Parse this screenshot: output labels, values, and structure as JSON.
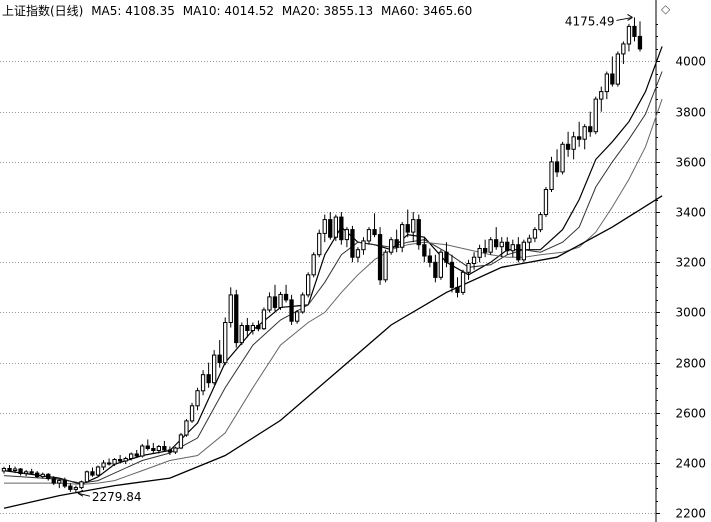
{
  "header": {
    "title": "上证指数(日线)",
    "ma5": "MA5: 4108.35",
    "ma10": "MA10: 4014.52",
    "ma20": "MA20: 3855.13",
    "ma60": "MA60: 3465.60"
  },
  "indicator": "◇",
  "chart_data": {
    "type": "candlestick",
    "title": "上证指数(日线)",
    "y_ticks": [
      2200,
      2400,
      2600,
      2800,
      3000,
      3200,
      3400,
      3600,
      3800,
      4000
    ],
    "y_tick_labels": [
      "2200",
      "2400",
      "2600",
      "2800",
      "3000",
      "3200",
      "3400",
      "3600",
      "3800",
      "4000"
    ],
    "ylim": [
      2165,
      4245
    ],
    "grid": true,
    "annotations": [
      {
        "label": "4175.49",
        "value": 4175.49,
        "type": "high"
      },
      {
        "label": "2279.84",
        "value": 2279.84,
        "type": "low"
      }
    ],
    "candles": [
      [
        2368,
        2385,
        2358,
        2378
      ],
      [
        2378,
        2392,
        2366,
        2370
      ],
      [
        2370,
        2386,
        2360,
        2376
      ],
      [
        2376,
        2380,
        2350,
        2358
      ],
      [
        2358,
        2372,
        2348,
        2365
      ],
      [
        2365,
        2377,
        2354,
        2360
      ],
      [
        2360,
        2368,
        2340,
        2346
      ],
      [
        2346,
        2362,
        2338,
        2355
      ],
      [
        2355,
        2360,
        2330,
        2338
      ],
      [
        2338,
        2348,
        2312,
        2320
      ],
      [
        2320,
        2336,
        2300,
        2330
      ],
      [
        2330,
        2342,
        2300,
        2308
      ],
      [
        2308,
        2320,
        2285,
        2295
      ],
      [
        2295,
        2310,
        2279.84,
        2302
      ],
      [
        2302,
        2330,
        2296,
        2325
      ],
      [
        2325,
        2370,
        2320,
        2365
      ],
      [
        2365,
        2382,
        2345,
        2352
      ],
      [
        2352,
        2390,
        2348,
        2384
      ],
      [
        2384,
        2412,
        2372,
        2400
      ],
      [
        2400,
        2418,
        2390,
        2396
      ],
      [
        2396,
        2420,
        2388,
        2414
      ],
      [
        2414,
        2432,
        2400,
        2408
      ],
      [
        2408,
        2425,
        2396,
        2418
      ],
      [
        2418,
        2442,
        2410,
        2436
      ],
      [
        2436,
        2452,
        2420,
        2428
      ],
      [
        2428,
        2476,
        2422,
        2468
      ],
      [
        2468,
        2494,
        2450,
        2458
      ],
      [
        2458,
        2480,
        2440,
        2450
      ],
      [
        2450,
        2472,
        2438,
        2466
      ],
      [
        2466,
        2488,
        2445,
        2452
      ],
      [
        2452,
        2466,
        2432,
        2444
      ],
      [
        2444,
        2465,
        2436,
        2460
      ],
      [
        2460,
        2520,
        2455,
        2512
      ],
      [
        2512,
        2575,
        2505,
        2568
      ],
      [
        2568,
        2640,
        2560,
        2628
      ],
      [
        2628,
        2700,
        2610,
        2688
      ],
      [
        2688,
        2770,
        2670,
        2752
      ],
      [
        2752,
        2800,
        2700,
        2720
      ],
      [
        2720,
        2850,
        2712,
        2830
      ],
      [
        2830,
        2890,
        2780,
        2800
      ],
      [
        2800,
        2980,
        2790,
        2960
      ],
      [
        2960,
        3100,
        2940,
        3070
      ],
      [
        3070,
        3090,
        2860,
        2880
      ],
      [
        2880,
        2960,
        2870,
        2948
      ],
      [
        2948,
        2978,
        2900,
        2928
      ],
      [
        2928,
        2960,
        2912,
        2948
      ],
      [
        2948,
        2968,
        2925,
        2935
      ],
      [
        2935,
        3020,
        2930,
        3010
      ],
      [
        3010,
        3080,
        3000,
        3062
      ],
      [
        3062,
        3110,
        3005,
        3020
      ],
      [
        3020,
        3082,
        3010,
        3072
      ],
      [
        3072,
        3110,
        3040,
        3050
      ],
      [
        3050,
        3070,
        2950,
        2965
      ],
      [
        2965,
        3010,
        2955,
        3002
      ],
      [
        3002,
        3080,
        2995,
        3070
      ],
      [
        3070,
        3160,
        3060,
        3150
      ],
      [
        3150,
        3240,
        3140,
        3230
      ],
      [
        3230,
        3330,
        3220,
        3315
      ],
      [
        3315,
        3390,
        3280,
        3370
      ],
      [
        3370,
        3400,
        3290,
        3300
      ],
      [
        3300,
        3390,
        3285,
        3380
      ],
      [
        3380,
        3400,
        3270,
        3290
      ],
      [
        3290,
        3340,
        3260,
        3330
      ],
      [
        3330,
        3345,
        3200,
        3220
      ],
      [
        3220,
        3260,
        3200,
        3250
      ],
      [
        3250,
        3300,
        3230,
        3285
      ],
      [
        3285,
        3340,
        3270,
        3330
      ],
      [
        3330,
        3395,
        3300,
        3310
      ],
      [
        3310,
        3340,
        3110,
        3130
      ],
      [
        3130,
        3250,
        3120,
        3240
      ],
      [
        3240,
        3300,
        3230,
        3290
      ],
      [
        3290,
        3330,
        3240,
        3260
      ],
      [
        3260,
        3360,
        3240,
        3350
      ],
      [
        3350,
        3410,
        3300,
        3320
      ],
      [
        3320,
        3400,
        3280,
        3370
      ],
      [
        3370,
        3390,
        3250,
        3270
      ],
      [
        3270,
        3300,
        3200,
        3225
      ],
      [
        3225,
        3255,
        3180,
        3200
      ],
      [
        3200,
        3230,
        3120,
        3140
      ],
      [
        3140,
        3250,
        3130,
        3240
      ],
      [
        3240,
        3280,
        3180,
        3200
      ],
      [
        3200,
        3230,
        3080,
        3100
      ],
      [
        3100,
        3140,
        3060,
        3080
      ],
      [
        3080,
        3170,
        3070,
        3160
      ],
      [
        3160,
        3210,
        3130,
        3195
      ],
      [
        3195,
        3240,
        3170,
        3220
      ],
      [
        3220,
        3270,
        3200,
        3255
      ],
      [
        3255,
        3290,
        3220,
        3240
      ],
      [
        3240,
        3300,
        3230,
        3290
      ],
      [
        3290,
        3340,
        3250,
        3262
      ],
      [
        3262,
        3300,
        3220,
        3280
      ],
      [
        3280,
        3300,
        3230,
        3246
      ],
      [
        3246,
        3290,
        3220,
        3270
      ],
      [
        3270,
        3300,
        3200,
        3210
      ],
      [
        3210,
        3290,
        3200,
        3280
      ],
      [
        3280,
        3310,
        3250,
        3296
      ],
      [
        3296,
        3340,
        3280,
        3330
      ],
      [
        3330,
        3400,
        3320,
        3390
      ],
      [
        3390,
        3500,
        3380,
        3490
      ],
      [
        3490,
        3620,
        3480,
        3600
      ],
      [
        3600,
        3650,
        3540,
        3560
      ],
      [
        3560,
        3680,
        3550,
        3670
      ],
      [
        3670,
        3720,
        3620,
        3650
      ],
      [
        3650,
        3720,
        3610,
        3700
      ],
      [
        3700,
        3760,
        3660,
        3690
      ],
      [
        3690,
        3750,
        3650,
        3740
      ],
      [
        3740,
        3800,
        3700,
        3720
      ],
      [
        3720,
        3860,
        3710,
        3850
      ],
      [
        3850,
        3900,
        3800,
        3880
      ],
      [
        3880,
        3960,
        3850,
        3950
      ],
      [
        3950,
        4020,
        3900,
        3910
      ],
      [
        3910,
        4040,
        3900,
        4030
      ],
      [
        4030,
        4080,
        3990,
        4070
      ],
      [
        4070,
        4150,
        4040,
        4140
      ],
      [
        4140,
        4175.49,
        4080,
        4100
      ],
      [
        4100,
        4160,
        4040,
        4050
      ]
    ],
    "ma_series": [
      {
        "name": "MA5",
        "color": "#000000",
        "width": 1.2,
        "x": [
          0,
          10,
          14,
          17,
          20,
          25,
          30,
          35,
          40,
          45,
          50,
          55,
          58,
          61,
          64,
          67,
          70,
          73,
          76,
          80,
          84,
          88,
          91,
          94,
          97,
          101,
          104,
          107,
          110,
          113,
          116,
          119
        ],
        "y": [
          2370,
          2340,
          2315,
          2345,
          2395,
          2430,
          2450,
          2560,
          2800,
          2930,
          3020,
          3030,
          3230,
          3340,
          3280,
          3270,
          3250,
          3310,
          3300,
          3200,
          3150,
          3200,
          3250,
          3250,
          3250,
          3330,
          3450,
          3610,
          3680,
          3760,
          3880,
          4060
        ]
      },
      {
        "name": "MA10",
        "color": "#333333",
        "width": 1.0,
        "x": [
          0,
          10,
          14,
          17,
          20,
          25,
          30,
          35,
          40,
          45,
          50,
          55,
          58,
          61,
          64,
          67,
          70,
          73,
          76,
          80,
          84,
          88,
          91,
          94,
          97,
          101,
          104,
          107,
          110,
          113,
          116,
          119
        ],
        "y": [
          2350,
          2335,
          2320,
          2330,
          2360,
          2410,
          2440,
          2500,
          2700,
          2870,
          2970,
          3030,
          3120,
          3230,
          3280,
          3270,
          3260,
          3280,
          3290,
          3240,
          3180,
          3190,
          3230,
          3250,
          3240,
          3280,
          3340,
          3500,
          3600,
          3690,
          3790,
          3960
        ]
      },
      {
        "name": "MA20",
        "color": "#666666",
        "width": 1.0,
        "x": [
          0,
          10,
          14,
          17,
          20,
          25,
          30,
          35,
          40,
          45,
          50,
          55,
          58,
          61,
          64,
          67,
          70,
          73,
          76,
          80,
          84,
          88,
          91,
          94,
          97,
          101,
          104,
          107,
          110,
          113,
          116,
          119
        ],
        "y": [
          2320,
          2320,
          2315,
          2320,
          2330,
          2370,
          2410,
          2430,
          2520,
          2700,
          2870,
          2960,
          3000,
          3080,
          3150,
          3210,
          3250,
          3270,
          3280,
          3270,
          3250,
          3230,
          3220,
          3220,
          3230,
          3240,
          3260,
          3320,
          3420,
          3530,
          3660,
          3850
        ]
      },
      {
        "name": "MA60",
        "color": "#000000",
        "width": 1.3,
        "x": [
          0,
          10,
          20,
          30,
          40,
          50,
          60,
          70,
          80,
          90,
          100,
          110,
          119
        ],
        "y": [
          2220,
          2270,
          2310,
          2340,
          2430,
          2570,
          2760,
          2950,
          3080,
          3180,
          3220,
          3340,
          3465
        ]
      }
    ]
  }
}
